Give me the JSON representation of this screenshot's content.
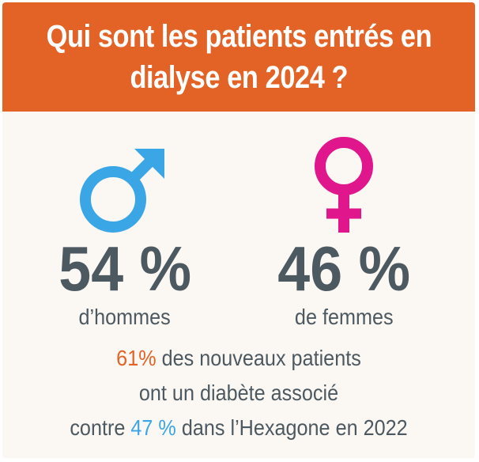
{
  "header": {
    "title_line1": "Qui sont les patients entrés en",
    "title_line2": "dialyse en 2024 ?"
  },
  "men": {
    "icon": "male-symbol-icon",
    "color": "#3aa6e6",
    "value": "54 %",
    "label": "d’hommes"
  },
  "women": {
    "icon": "female-symbol-icon",
    "color": "#e0168c",
    "value": "46 %",
    "label": "de femmes"
  },
  "note": {
    "line1_highlight": "61%",
    "line1_rest": " des nouveaux patients",
    "line2": "ont un diabète associé",
    "line3_prefix": "contre ",
    "line3_highlight": "47 %",
    "line3_suffix": " dans l’Hexagone en 2022"
  },
  "colors": {
    "header_bg": "#e36327",
    "text": "#4d5961",
    "accent_orange": "#e36327",
    "accent_blue": "#3aa6e6"
  }
}
